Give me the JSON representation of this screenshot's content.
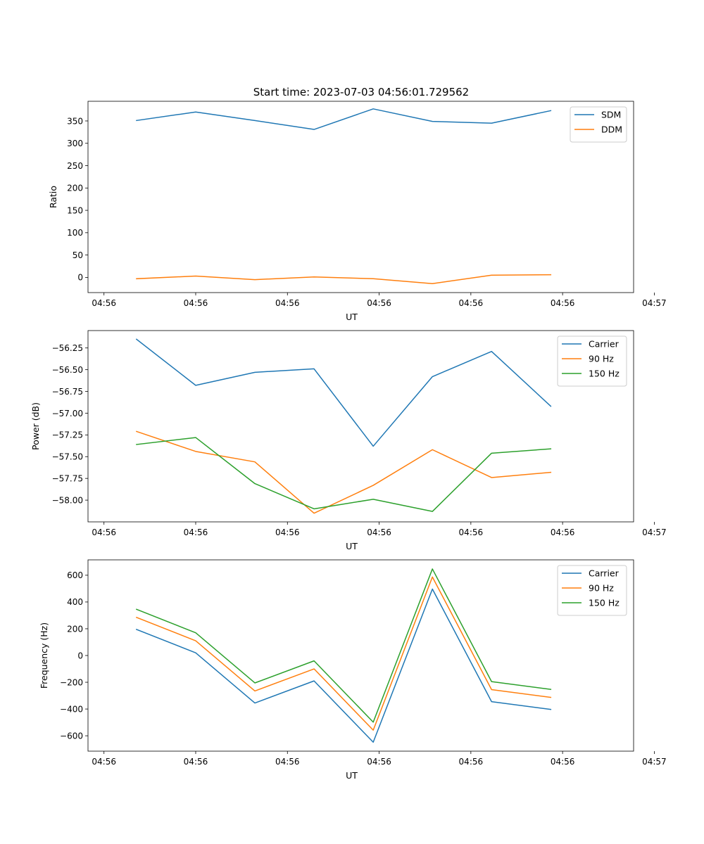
{
  "figure_title": "Start time: 2023-07-03 04:56:01.729562",
  "colors": {
    "blue": "#1f77b4",
    "orange": "#ff7f0e",
    "green": "#2ca02c"
  },
  "chart_data": [
    {
      "type": "line",
      "title": "Start time: 2023-07-03 04:56:01.729562",
      "xlabel": "UT",
      "ylabel": "Ratio",
      "x": [
        1,
        2,
        3,
        4,
        5,
        6,
        7,
        8
      ],
      "xlim": [
        0.18,
        9.4
      ],
      "x_ticks": [
        0.45,
        2.0,
        3.55,
        5.1,
        6.65,
        8.2,
        9.75
      ],
      "x_tick_labels": [
        "04:56",
        "04:56",
        "04:56",
        "04:56",
        "04:56",
        "04:56",
        "04:57"
      ],
      "ylim": [
        -34,
        394
      ],
      "y_ticks": [
        0,
        50,
        100,
        150,
        200,
        250,
        300,
        350
      ],
      "legend": "top-right",
      "series": [
        {
          "name": "SDM",
          "color": "#1f77b4",
          "values": [
            351,
            370,
            351,
            331,
            377,
            349,
            345,
            373
          ]
        },
        {
          "name": "DDM",
          "color": "#ff7f0e",
          "values": [
            -3,
            3,
            -5,
            1,
            -3,
            -14,
            5,
            6
          ]
        }
      ]
    },
    {
      "type": "line",
      "title": "",
      "xlabel": "UT",
      "ylabel": "Power (dB)",
      "x": [
        1,
        2,
        3,
        4,
        5,
        6,
        7,
        8
      ],
      "xlim": [
        0.18,
        9.4
      ],
      "x_ticks": [
        0.45,
        2.0,
        3.55,
        5.1,
        6.65,
        8.2,
        9.75
      ],
      "x_tick_labels": [
        "04:56",
        "04:56",
        "04:56",
        "04:56",
        "04:56",
        "04:56",
        "04:57"
      ],
      "ylim": [
        -58.25,
        -56.05
      ],
      "y_ticks": [
        -58.0,
        -57.75,
        -57.5,
        -57.25,
        -57.0,
        -56.75,
        -56.5,
        -56.25
      ],
      "y_tick_labels": [
        "−58.00",
        "−57.75",
        "−57.50",
        "−57.25",
        "−57.00",
        "−56.75",
        "−56.50",
        "−56.25"
      ],
      "legend": "top-right",
      "series": [
        {
          "name": "Carrier",
          "color": "#1f77b4",
          "values": [
            -56.15,
            -56.68,
            -56.53,
            -56.49,
            -57.38,
            -56.58,
            -56.29,
            -56.92
          ]
        },
        {
          "name": "90 Hz",
          "color": "#ff7f0e",
          "values": [
            -57.21,
            -57.44,
            -57.56,
            -58.15,
            -57.83,
            -57.42,
            -57.74,
            -57.68
          ]
        },
        {
          "name": "150 Hz",
          "color": "#2ca02c",
          "values": [
            -57.36,
            -57.28,
            -57.81,
            -58.1,
            -57.99,
            -58.13,
            -57.46,
            -57.41
          ]
        }
      ]
    },
    {
      "type": "line",
      "title": "",
      "xlabel": "UT",
      "ylabel": "Frequency (Hz)",
      "x": [
        1,
        2,
        3,
        4,
        5,
        6,
        7,
        8
      ],
      "xlim": [
        0.18,
        9.4
      ],
      "x_ticks": [
        0.45,
        2.0,
        3.55,
        5.1,
        6.65,
        8.2,
        9.75
      ],
      "x_tick_labels": [
        "04:56",
        "04:56",
        "04:56",
        "04:56",
        "04:56",
        "04:56",
        "04:57"
      ],
      "ylim": [
        -715,
        715
      ],
      "y_ticks": [
        -600,
        -400,
        -200,
        0,
        200,
        400,
        600
      ],
      "y_tick_labels": [
        "−600",
        "−400",
        "−200",
        "0",
        "200",
        "400",
        "600"
      ],
      "legend": "top-right",
      "series": [
        {
          "name": "Carrier",
          "color": "#1f77b4",
          "values": [
            195,
            20,
            -355,
            -190,
            -648,
            497,
            -345,
            -403
          ]
        },
        {
          "name": "90 Hz",
          "color": "#ff7f0e",
          "values": [
            285,
            110,
            -265,
            -100,
            -558,
            587,
            -255,
            -313
          ]
        },
        {
          "name": "150 Hz",
          "color": "#2ca02c",
          "values": [
            345,
            170,
            -205,
            -40,
            -498,
            647,
            -195,
            -253
          ]
        }
      ]
    }
  ]
}
